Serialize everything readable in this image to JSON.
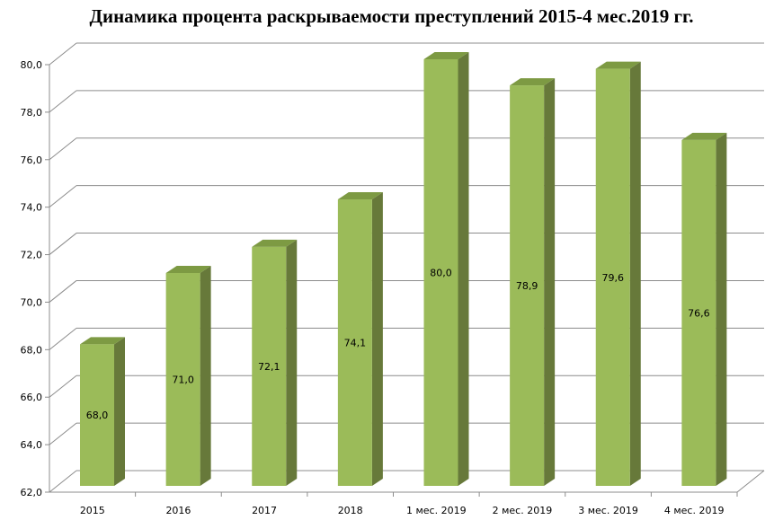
{
  "chart_data": {
    "type": "bar",
    "title": "Динамика процента раскрываемости преступлений 2015-4 мес.2019 гг.",
    "categories": [
      "2015",
      "2016",
      "2017",
      "2018",
      "1 мес. 2019",
      "2 мес. 2019",
      "3 мес. 2019",
      "4 мес. 2019"
    ],
    "values": [
      68.0,
      71.0,
      72.1,
      74.1,
      80.0,
      78.9,
      79.6,
      76.6
    ],
    "data_labels": [
      "68,0",
      "71,0",
      "72,1",
      "74,1",
      "80,0",
      "78,9",
      "79,6",
      "76,6"
    ],
    "y_ticks": [
      "62,0",
      "64,0",
      "66,0",
      "68,0",
      "70,0",
      "72,0",
      "74,0",
      "76,0",
      "78,0",
      "80,0"
    ],
    "ylim": [
      62,
      80
    ],
    "grid": true,
    "style": "3d-column",
    "colors": {
      "front": "#9bbb59",
      "side": "#67793a",
      "top": "#7d9a43",
      "grid": "#8c8c8c"
    }
  }
}
